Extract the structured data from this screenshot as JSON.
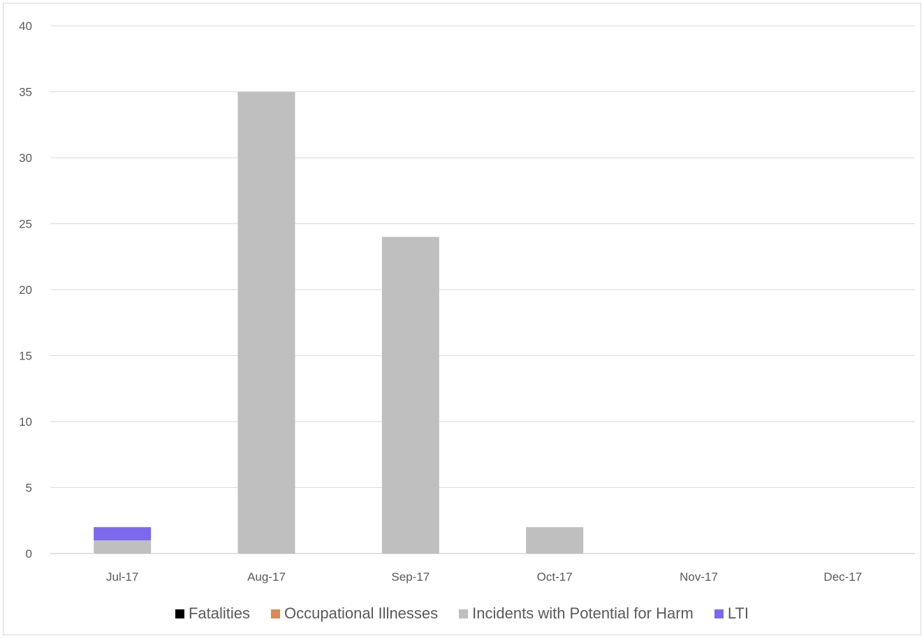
{
  "chart_data": {
    "type": "bar",
    "stacked": true,
    "categories": [
      "Jul-17",
      "Aug-17",
      "Sep-17",
      "Oct-17",
      "Nov-17",
      "Dec-17"
    ],
    "series": [
      {
        "name": "Fatalities",
        "color": "#000000",
        "values": [
          0,
          0,
          0,
          0,
          0,
          0
        ]
      },
      {
        "name": "Occupational Illnesses",
        "color": "#d98a56",
        "values": [
          0,
          0,
          0,
          0,
          0,
          0
        ]
      },
      {
        "name": "Incidents with Potential for Harm",
        "color": "#bfbfbf",
        "values": [
          1,
          35,
          24,
          2,
          0,
          0
        ]
      },
      {
        "name": "LTI",
        "color": "#7b68ee",
        "values": [
          1,
          0,
          0,
          0,
          0,
          0
        ]
      }
    ],
    "ylim": [
      0,
      40
    ],
    "yticks": [
      0,
      5,
      10,
      15,
      20,
      25,
      30,
      35,
      40
    ],
    "grid": true,
    "legend_position": "bottom"
  }
}
